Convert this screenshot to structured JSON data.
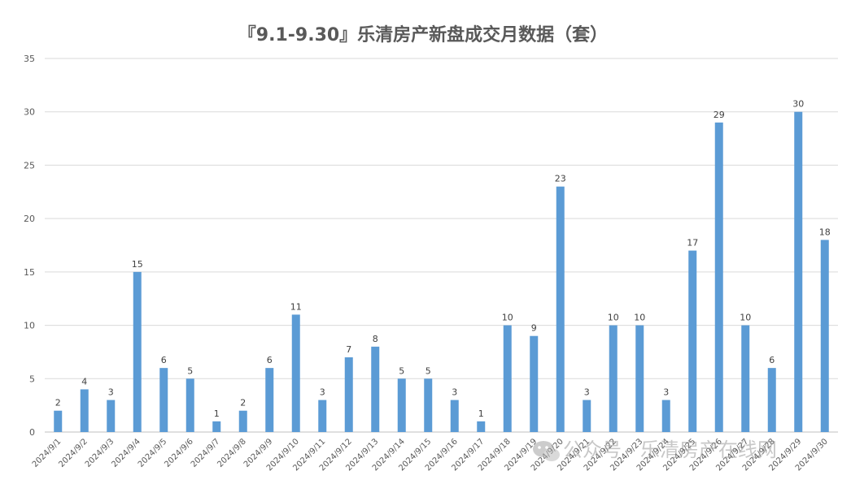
{
  "chart_data": {
    "type": "bar",
    "title": "『9.1-9.30』乐清房产新盘成交月数据（套）",
    "categories": [
      "2024/9/1",
      "2024/9/2",
      "2024/9/3",
      "2024/9/4",
      "2024/9/5",
      "2024/9/6",
      "2024/9/7",
      "2024/9/8",
      "2024/9/9",
      "2024/9/10",
      "2024/9/11",
      "2024/9/12",
      "2024/9/13",
      "2024/9/14",
      "2024/9/15",
      "2024/9/16",
      "2024/9/17",
      "2024/9/18",
      "2024/9/19",
      "2024/9/20",
      "2024/9/21",
      "2024/9/22",
      "2024/9/23",
      "2024/9/24",
      "2024/9/25",
      "2024/9/26",
      "2024/9/27",
      "2024/9/28",
      "2024/9/29",
      "2024/9/30"
    ],
    "values": [
      2,
      4,
      3,
      15,
      6,
      5,
      1,
      2,
      6,
      11,
      3,
      7,
      8,
      5,
      5,
      3,
      1,
      10,
      9,
      23,
      3,
      10,
      10,
      3,
      17,
      29,
      10,
      6,
      30,
      18
    ],
    "ylim": [
      0,
      35
    ],
    "yticks": [
      0,
      5,
      10,
      15,
      20,
      25,
      30,
      35
    ],
    "grid": true,
    "bar_color": "#5b9bd5",
    "xlabel": "",
    "ylabel": ""
  },
  "watermark": {
    "text": "公众号 · 乐清房产在线网",
    "icon": "wechat-icon"
  }
}
